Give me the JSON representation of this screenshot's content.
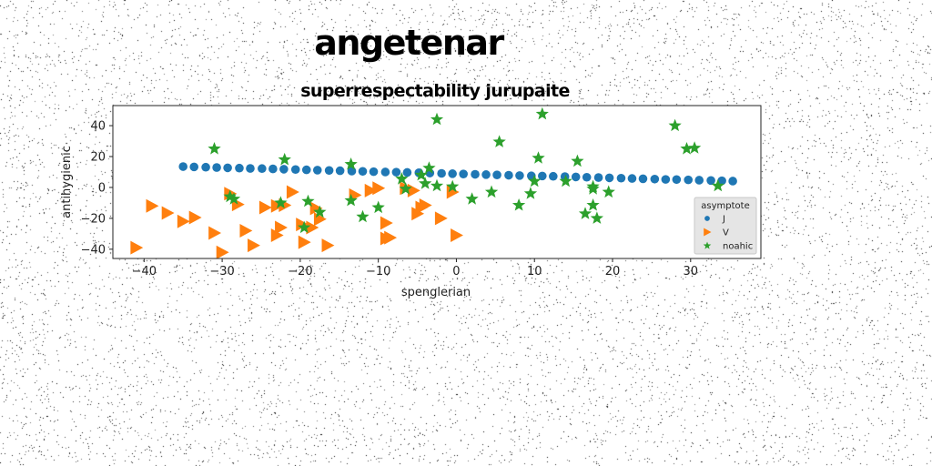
{
  "suptitle": "angetenar",
  "chart_data": {
    "type": "scatter",
    "title": "superrespectability jurupaite",
    "xlabel": "spenglerian",
    "ylabel": "antihygienic",
    "xlim": [
      -44,
      39
    ],
    "ylim": [
      -46,
      53
    ],
    "xticks": [
      -40,
      -30,
      -20,
      -10,
      0,
      10,
      20,
      30
    ],
    "yticks": [
      -40,
      -20,
      0,
      20,
      40
    ],
    "grid": false,
    "legend": {
      "title": "asymptote",
      "placement": "lower-right"
    },
    "series": [
      {
        "name": "J",
        "marker": "circle",
        "color": "#1f77b4",
        "points": [
          [
            -35.0,
            13.5
          ],
          [
            -33.6,
            13.3
          ],
          [
            -32.1,
            13.1
          ],
          [
            -30.7,
            12.9
          ],
          [
            -29.3,
            12.7
          ],
          [
            -27.8,
            12.5
          ],
          [
            -26.4,
            12.3
          ],
          [
            -24.9,
            12.2
          ],
          [
            -23.5,
            12.0
          ],
          [
            -22.1,
            11.8
          ],
          [
            -20.6,
            11.6
          ],
          [
            -19.2,
            11.4
          ],
          [
            -17.8,
            11.2
          ],
          [
            -16.3,
            11.0
          ],
          [
            -14.9,
            10.8
          ],
          [
            -13.4,
            10.6
          ],
          [
            -12.0,
            10.4
          ],
          [
            -10.6,
            10.2
          ],
          [
            -9.1,
            10.0
          ],
          [
            -7.7,
            9.9
          ],
          [
            -6.3,
            9.7
          ],
          [
            -4.8,
            9.5
          ],
          [
            -3.4,
            9.3
          ],
          [
            -1.9,
            9.1
          ],
          [
            -0.5,
            8.9
          ],
          [
            0.9,
            8.7
          ],
          [
            2.4,
            8.5
          ],
          [
            3.8,
            8.3
          ],
          [
            5.2,
            8.1
          ],
          [
            6.7,
            7.9
          ],
          [
            8.1,
            7.7
          ],
          [
            9.6,
            7.5
          ],
          [
            11.0,
            7.4
          ],
          [
            12.4,
            7.2
          ],
          [
            13.9,
            7.0
          ],
          [
            15.3,
            6.8
          ],
          [
            16.7,
            6.6
          ],
          [
            18.2,
            6.4
          ],
          [
            19.6,
            6.2
          ],
          [
            21.1,
            6.0
          ],
          [
            22.5,
            5.8
          ],
          [
            23.9,
            5.6
          ],
          [
            25.4,
            5.4
          ],
          [
            26.8,
            5.2
          ],
          [
            28.2,
            5.1
          ],
          [
            29.7,
            4.9
          ],
          [
            31.1,
            4.7
          ],
          [
            32.6,
            4.5
          ],
          [
            34.0,
            4.3
          ],
          [
            35.4,
            4.1
          ]
        ]
      },
      {
        "name": "V",
        "marker": "triangle-right",
        "color": "#ff7f0e",
        "points": [
          [
            -41.0,
            -39.0
          ],
          [
            -39.0,
            -12.0
          ],
          [
            -37.0,
            -16.5
          ],
          [
            -35.0,
            -22.0
          ],
          [
            -33.5,
            -19.5
          ],
          [
            -31.0,
            -29.5
          ],
          [
            -30.0,
            -42.0
          ],
          [
            -29.0,
            -4.0
          ],
          [
            -28.0,
            -11.0
          ],
          [
            -27.0,
            -28.0
          ],
          [
            -26.0,
            -37.5
          ],
          [
            -24.5,
            -13.0
          ],
          [
            -23.0,
            -12.0
          ],
          [
            -23.0,
            -31.0
          ],
          [
            -22.5,
            -26.0
          ],
          [
            -22.0,
            -11.5
          ],
          [
            -21.0,
            -3.0
          ],
          [
            -19.8,
            -24.0
          ],
          [
            -19.5,
            -35.5
          ],
          [
            -18.5,
            -26.0
          ],
          [
            -18.0,
            -13.5
          ],
          [
            -17.5,
            -20.5
          ],
          [
            -16.5,
            -37.5
          ],
          [
            -13.0,
            -5.0
          ],
          [
            -11.0,
            -2.0
          ],
          [
            -10.0,
            -0.5
          ],
          [
            -9.0,
            -33.0
          ],
          [
            -9.0,
            -23.0
          ],
          [
            -8.5,
            -32.5
          ],
          [
            -6.5,
            -0.5
          ],
          [
            -5.5,
            -2.0
          ],
          [
            -5.0,
            -17.0
          ],
          [
            -4.5,
            -13.0
          ],
          [
            -4.0,
            -11.5
          ],
          [
            -2.0,
            -20.0
          ],
          [
            -0.5,
            -3.0
          ],
          [
            0.0,
            -31.0
          ]
        ]
      },
      {
        "name": "noahic",
        "marker": "star",
        "color": "#2ca02c",
        "points": [
          [
            -31.0,
            25.0
          ],
          [
            -29.0,
            -6.0
          ],
          [
            -28.5,
            -7.5
          ],
          [
            -22.0,
            18.0
          ],
          [
            -22.5,
            -10.0
          ],
          [
            -19.0,
            -9.0
          ],
          [
            -19.5,
            -26.0
          ],
          [
            -17.5,
            -16.0
          ],
          [
            -13.5,
            15.0
          ],
          [
            -13.5,
            -8.5
          ],
          [
            -12.0,
            -19.0
          ],
          [
            -10.0,
            -13.0
          ],
          [
            -7.0,
            5.5
          ],
          [
            -6.5,
            -1.0
          ],
          [
            -4.5,
            8.0
          ],
          [
            -4.0,
            2.5
          ],
          [
            -3.5,
            12.5
          ],
          [
            -2.5,
            44.0
          ],
          [
            -2.5,
            1.0
          ],
          [
            -0.5,
            0.5
          ],
          [
            2.0,
            -7.5
          ],
          [
            4.5,
            -3.0
          ],
          [
            5.5,
            29.5
          ],
          [
            8.0,
            -11.5
          ],
          [
            9.5,
            -4.0
          ],
          [
            10.0,
            4.0
          ],
          [
            10.5,
            19.0
          ],
          [
            11.0,
            47.5
          ],
          [
            14.0,
            4.0
          ],
          [
            15.5,
            17.0
          ],
          [
            16.5,
            -17.0
          ],
          [
            17.5,
            0.5
          ],
          [
            17.5,
            -1.0
          ],
          [
            17.5,
            -11.5
          ],
          [
            18.0,
            -20.0
          ],
          [
            19.5,
            -3.0
          ],
          [
            28.0,
            40.0
          ],
          [
            29.5,
            25.0
          ],
          [
            30.5,
            25.5
          ],
          [
            33.5,
            1.0
          ]
        ]
      }
    ]
  }
}
